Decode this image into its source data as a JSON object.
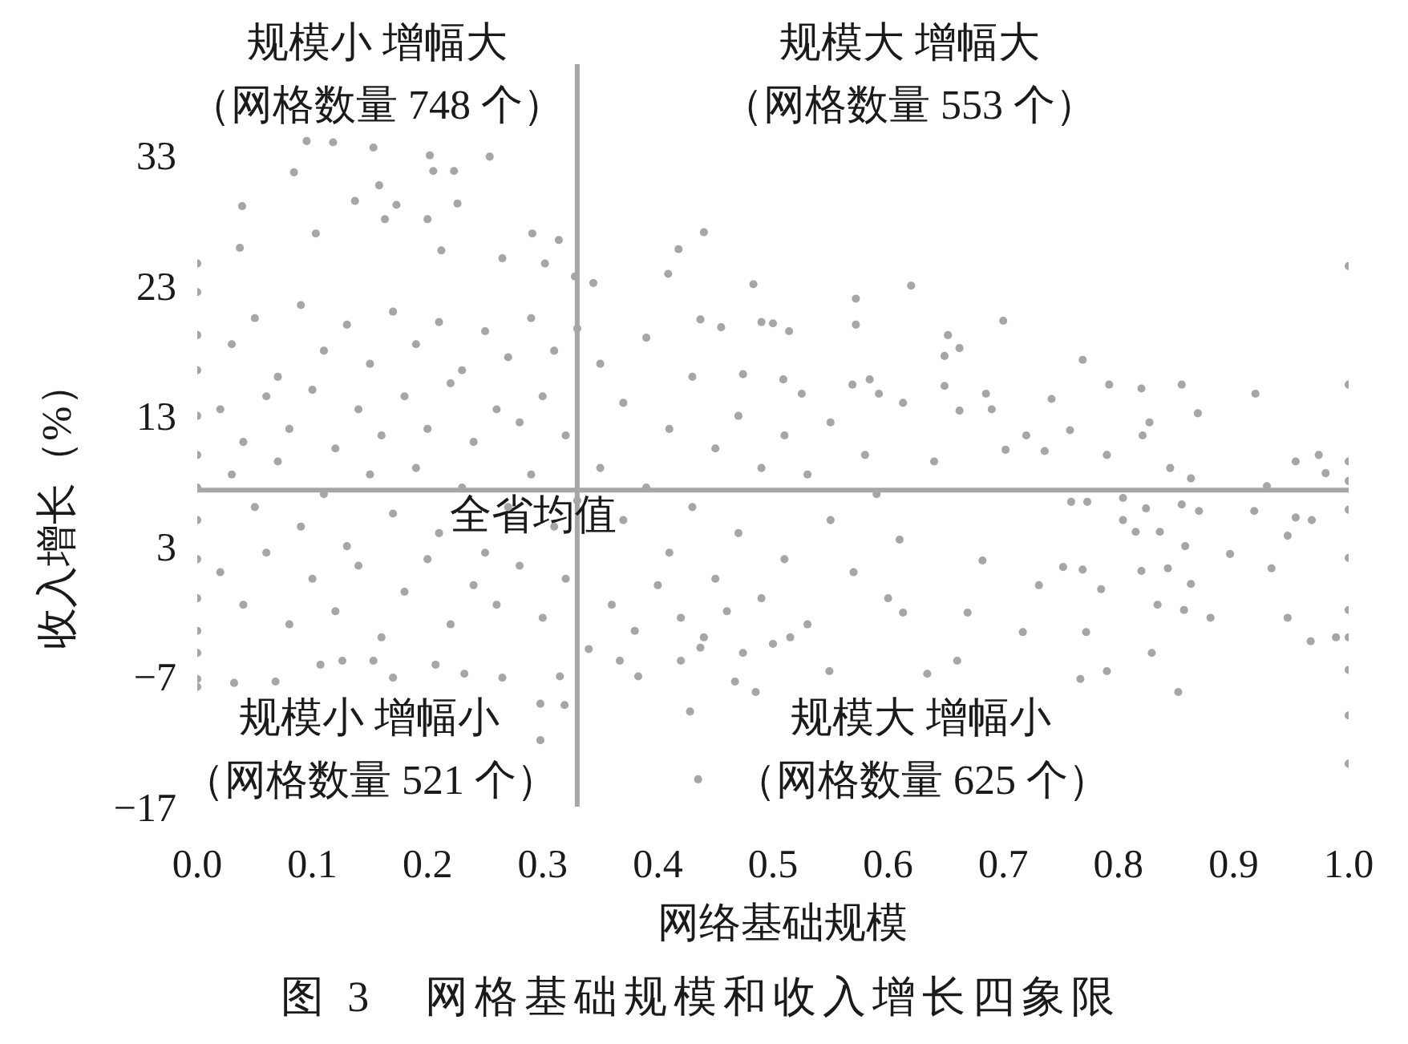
{
  "chart_data": {
    "type": "scatter",
    "title": "图 3　网格基础规模和收入增长四象限",
    "xlabel": "网络基础规模",
    "ylabel": "收入增长（%）",
    "annotations": [
      "规模小 增幅大",
      "（网格数量 748 个）",
      "规模大 增幅大",
      "（网格数量 553 个）",
      "规模小 增幅小",
      "（网格数量 521 个）",
      "规模大 增幅小",
      "（网格数量 625 个）"
    ],
    "color": "#a6a6a6",
    "marker": "circle",
    "x": [
      0.095,
      0.118,
      0.153,
      0.202,
      0.254,
      0.084,
      0.205,
      0.223,
      0.039,
      0.158,
      0.137,
      0.173,
      0.226,
      0.2,
      0.163,
      0.103,
      0.291,
      0.314,
      0.037,
      0,
      0,
      0.212,
      0.265,
      0.302,
      0.328,
      0.344,
      0.409,
      0.418,
      0.44,
      0.483,
      0.62,
      0.572,
      0.7,
      1,
      0.769,
      1,
      0.792,
      0.855,
      0.919,
      0.869,
      0.652,
      0.5,
      0.974,
      0.954,
      0.98,
      0.845,
      0.572,
      0.49,
      0.514,
      0.649,
      0.662,
      0.685,
      0.742,
      0.69,
      0.82,
      0.827,
      0.821,
      0.758,
      0.72,
      0.736,
      0.702,
      0.79,
      0.863,
      0.929,
      0.649,
      0.662,
      0.613,
      0.592,
      0.569,
      0.584,
      0.525,
      0.509,
      0.474,
      0.455,
      0.437,
      0.759,
      0.773,
      0.804,
      0.824,
      0.855,
      0.87,
      0.918,
      0.954,
      0.968,
      0.947,
      0.897,
      0.815,
      0.836,
      0.858,
      0.843,
      0.804,
      0.769,
      0,
      0,
      0,
      0,
      0,
      0,
      0,
      0,
      0,
      0,
      0,
      0,
      0.03,
      0.05,
      0.07,
      0.09,
      0.11,
      0.13,
      0.15,
      0.17,
      0.19,
      0.21,
      0.23,
      0.25,
      0.27,
      0.29,
      0.31,
      0.33,
      0.02,
      0.04,
      0.06,
      0.08,
      0.1,
      0.12,
      0.14,
      0.16,
      0.18,
      0.2,
      0.22,
      0.24,
      0.26,
      0.28,
      0.3,
      0.32,
      0.03,
      0.05,
      0.07,
      0.09,
      0.11,
      0.13,
      0.15,
      0.17,
      0.19,
      0.21,
      0.23,
      0.25,
      0.27,
      0.29,
      0.31,
      0.33,
      0.02,
      0.04,
      0.06,
      0.08,
      0.1,
      0.12,
      0.14,
      0.16,
      0.18,
      0.2,
      0.22,
      0.24,
      0.26,
      0.28,
      0.3,
      0.32,
      0.35,
      0.37,
      0.39,
      0.41,
      0.43,
      0.45,
      0.47,
      0.49,
      0.51,
      0.53,
      0.55,
      0.35,
      0.37,
      0.39,
      0.41,
      0.43,
      0.45,
      0.47,
      0.49,
      0.51,
      0.53,
      0.55,
      0.57,
      0.59,
      0.61,
      0.36,
      0.38,
      0.4,
      0.42,
      0.44,
      0.46,
      0.5,
      0.6,
      0.64,
      0.58,
      0.032,
      0.068,
      0.107,
      0.126,
      0.153,
      0.17,
      0.207,
      0.232,
      0.265,
      0.298,
      0.319,
      0.298,
      0.315,
      0.428,
      0.435,
      0.383,
      0.367,
      0.42,
      0.34,
      0.852,
      0.967,
      0.989,
      0.829,
      0.79,
      0.767,
      0.88,
      0.947,
      0.933,
      0.857,
      0.834,
      0.772,
      0.717,
      0.66,
      0.634,
      0.549,
      0.474,
      0.467,
      0.485,
      0.437,
      0.515,
      0.613,
      0.669,
      0.785,
      0.731,
      0.682,
      0.752,
      0.82,
      0.863,
      1,
      1,
      1,
      1,
      1,
      1,
      1,
      1,
      1
    ],
    "values": [
      34.1,
      34,
      33.6,
      33,
      32.9,
      31.7,
      31.8,
      31.8,
      29.1,
      30.7,
      29.5,
      29.2,
      29.3,
      28.1,
      28.1,
      27,
      27,
      26.5,
      25.9,
      24.7,
      22.5,
      25.7,
      25.1,
      24.7,
      23.7,
      23.2,
      23.9,
      25.8,
      27.1,
      23.1,
      23,
      22,
      20.3,
      24.5,
      17.3,
      15.4,
      15.4,
      15.4,
      14.7,
      13.2,
      19.2,
      20.1,
      10,
      9.5,
      8.6,
      9,
      20,
      20.2,
      19.5,
      17.6,
      18.2,
      14.7,
      14.3,
      13.5,
      15.1,
      12.5,
      11.5,
      11.9,
      11.5,
      10.3,
      10.4,
      10,
      8.2,
      7.6,
      15.3,
      13.4,
      14,
      14.7,
      15.4,
      15.8,
      14.7,
      15.8,
      16.2,
      19.8,
      20.4,
      6.4,
      6.4,
      6.7,
      5.9,
      6.2,
      5.7,
      5.7,
      5.2,
      5,
      3.8,
      2.4,
      4.1,
      4.1,
      3,
      1.3,
      5,
      1.2,
      19.2,
      16.5,
      13,
      10,
      7.5,
      5,
      2,
      -1,
      -3.5,
      -5.2,
      -7.2,
      -7.8,
      18.5,
      20.5,
      16,
      21.5,
      18,
      20,
      17,
      21,
      18.5,
      20.2,
      16.5,
      19.5,
      17.5,
      20.5,
      18,
      19.7,
      13.5,
      11,
      14.5,
      12,
      15,
      10.5,
      13.5,
      11.5,
      14.5,
      12,
      15.5,
      11,
      13.5,
      12.5,
      14.5,
      11.5,
      8.5,
      6,
      9.5,
      4.5,
      7,
      3,
      8.5,
      5.5,
      9,
      4,
      7.5,
      2.5,
      6,
      8.5,
      4.5,
      6.5,
      1,
      -1.5,
      2.5,
      -3,
      0.5,
      -2,
      1.5,
      -4,
      -0.5,
      2,
      -3,
      0,
      -1.5,
      1.5,
      -2.5,
      0.5,
      17,
      14,
      19,
      12,
      16,
      10.5,
      13,
      9,
      11.5,
      8.5,
      12.5,
      9,
      5,
      7.5,
      2.5,
      6,
      0.5,
      4,
      -1,
      2,
      -3,
      5,
      1,
      7,
      3.5,
      -1.5,
      -3.5,
      0,
      -2.5,
      -4,
      -2,
      -4.5,
      -1,
      9.5,
      10,
      -7.5,
      -7.4,
      -6.1,
      -5.8,
      -5.8,
      -7.1,
      -6.1,
      -6.8,
      -7.1,
      -9.1,
      -9.2,
      -11.9,
      -7,
      -9.7,
      -14.9,
      -7,
      -5.8,
      -5.8,
      -4.9,
      -8.2,
      -4.3,
      -4,
      -5.2,
      -6.6,
      -7.2,
      -2.5,
      -2.5,
      1.3,
      -1.9,
      -1.5,
      -3.6,
      -3.6,
      -5.8,
      -6.8,
      -6.6,
      -5.2,
      -7.4,
      -8.2,
      -4.8,
      -4,
      -2.1,
      -2.1,
      -0.3,
      0,
      1.9,
      1.4,
      1.1,
      0.1,
      -13.7,
      -10,
      -6.5,
      -4,
      -1.9,
      2.1,
      5.8,
      8,
      9.5
    ],
    "xlim": [
      0,
      1
    ],
    "xticks": [
      {
        "value": 0,
        "label": "0.0"
      },
      0.1,
      0.2,
      0.3,
      0.4,
      0.5,
      0.6,
      0.7,
      0.8,
      0.9,
      {
        "value": 1,
        "label": "1.0"
      }
    ],
    "ylim": [
      -17,
      40
    ],
    "yticks": [
      {
        "value": -17,
        "label": "−17"
      },
      {
        "value": -7,
        "label": "−7"
      },
      3,
      13,
      23,
      33
    ],
    "ref_lines": [
      {
        "axis": "x",
        "value": 0.33,
        "color": "#a6a6a6"
      },
      {
        "axis": "y",
        "value": 7.3,
        "label": "全省均值",
        "color": "#a6a6a6"
      }
    ]
  }
}
